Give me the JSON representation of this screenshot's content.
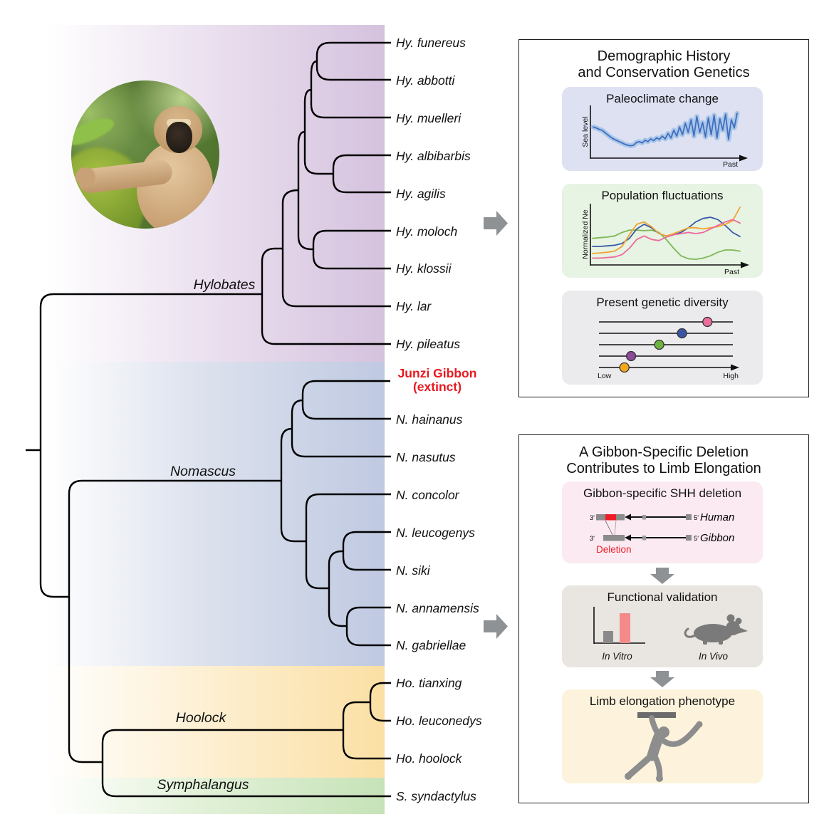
{
  "figure": {
    "description": "Gibbon phylogenomics summary figure"
  },
  "tree": {
    "genus_labels": [
      {
        "name": "Hylobates"
      },
      {
        "name": "Nomascus"
      },
      {
        "name": "Hoolock"
      },
      {
        "name": "Symphalangus"
      }
    ],
    "tips": [
      {
        "label": "Hy. funereus"
      },
      {
        "label": "Hy. abbotti"
      },
      {
        "label": "Hy. muelleri"
      },
      {
        "label": "Hy. albibarbis"
      },
      {
        "label": "Hy. agilis"
      },
      {
        "label": "Hy. moloch"
      },
      {
        "label": "Hy. klossii"
      },
      {
        "label": "Hy. lar"
      },
      {
        "label": "Hy. pileatus"
      },
      {
        "label": "Junzi Gibbon",
        "sublabel": "(extinct)",
        "highlight": true
      },
      {
        "label": "N. hainanus"
      },
      {
        "label": "N. nasutus"
      },
      {
        "label": "N. concolor"
      },
      {
        "label": "N. leucogenys"
      },
      {
        "label": "N. siki"
      },
      {
        "label": "N. annamensis"
      },
      {
        "label": "N. gabriellae"
      },
      {
        "label": "Ho. tianxing"
      },
      {
        "label": "Ho. leuconedys"
      },
      {
        "label": "Ho. hoolock"
      },
      {
        "label": "S. syndactylus"
      }
    ]
  },
  "panels": {
    "demographic": {
      "title_line1": "Demographic History",
      "title_line2": "and Conservation Genetics"
    },
    "deletion": {
      "title_line1": "A Gibbon-Specific Deletion",
      "title_line2": "Contributes to Limb Elongation",
      "shh": {
        "title": "Gibbon-specific SHH deletion",
        "rows": [
          {
            "left": "3'",
            "right": "5'",
            "species": "Human"
          },
          {
            "left": "3'",
            "right": "5'",
            "species": "Gibbon"
          }
        ],
        "deletion_label": "Deletion"
      },
      "functional": {
        "title": "Functional validation",
        "invitro": "In Vitro",
        "invivo": "In Vivo"
      },
      "limb": {
        "title": "Limb elongation phenotype"
      }
    }
  },
  "colors": {
    "band_hylobates": "#d5c2de",
    "band_nomascus": "#bfc9e1",
    "band_hoolock": "#fbdfa4",
    "band_symphalangus": "#c6e3b8",
    "junzi_red": "#e8191f",
    "arrow_gray": "#8e9295",
    "deletion_red": "#ee1c24",
    "invitro_bar_pink": "#f58a8a",
    "silhouette_gray": "#8d8d8d"
  },
  "chart_data": [
    {
      "id": "paleoclimate",
      "type": "line",
      "title": "Paleoclimate change",
      "xlabel": "Past",
      "ylabel": "Sea level",
      "grid": false,
      "line_color": "#3f6fbe",
      "band_color": "#aac6e9",
      "series": [
        {
          "name": "sea_level_relative",
          "values": [
            0.62,
            0.6,
            0.57,
            0.55,
            0.5,
            0.45,
            0.4,
            0.36,
            0.33,
            0.3,
            0.27,
            0.24,
            0.22,
            0.21,
            0.22,
            0.28,
            0.3,
            0.27,
            0.33,
            0.3,
            0.36,
            0.32,
            0.38,
            0.35,
            0.42,
            0.36,
            0.48,
            0.38,
            0.55,
            0.42,
            0.62,
            0.45,
            0.7,
            0.5,
            0.78,
            0.42,
            0.85,
            0.5,
            0.72,
            0.4,
            0.82,
            0.45,
            0.88,
            0.38,
            0.8,
            0.55,
            0.9,
            0.35,
            0.78,
            0.6,
            0.92
          ]
        }
      ]
    },
    {
      "id": "population",
      "type": "line",
      "title": "Population fluctuations",
      "xlabel": "Past",
      "ylabel": "Normalized Ne",
      "grid": false,
      "series": [
        {
          "name": "green",
          "color": "#7cb854",
          "values": [
            0.42,
            0.43,
            0.44,
            0.46,
            0.52,
            0.56,
            0.56,
            0.55,
            0.56,
            0.52,
            0.4,
            0.25,
            0.12,
            0.07,
            0.06,
            0.08,
            0.12,
            0.18,
            0.22,
            0.22,
            0.2
          ]
        },
        {
          "name": "blue",
          "color": "#3958a7",
          "values": [
            0.28,
            0.28,
            0.29,
            0.3,
            0.33,
            0.42,
            0.58,
            0.66,
            0.6,
            0.5,
            0.46,
            0.48,
            0.52,
            0.6,
            0.7,
            0.76,
            0.78,
            0.74,
            0.64,
            0.52,
            0.45
          ]
        },
        {
          "name": "orange",
          "color": "#f0a432",
          "values": [
            0.16,
            0.17,
            0.18,
            0.2,
            0.28,
            0.48,
            0.66,
            0.7,
            0.62,
            0.5,
            0.46,
            0.5,
            0.55,
            0.6,
            0.6,
            0.58,
            0.6,
            0.62,
            0.66,
            0.72,
            0.95
          ]
        },
        {
          "name": "pink",
          "color": "#ec6a9c",
          "values": [
            0.08,
            0.08,
            0.09,
            0.1,
            0.14,
            0.25,
            0.4,
            0.46,
            0.4,
            0.38,
            0.44,
            0.48,
            0.5,
            0.52,
            0.5,
            0.52,
            0.58,
            0.64,
            0.7,
            0.74,
            0.68
          ]
        }
      ]
    },
    {
      "id": "diversity",
      "type": "scatter",
      "title": "Present genetic diversity",
      "xlabel_low": "Low",
      "xlabel_high": "High",
      "rows": 5,
      "points": [
        {
          "row": 1,
          "value": 0.81,
          "color": "#ea6d9e"
        },
        {
          "row": 2,
          "value": 0.62,
          "color": "#3b55a4"
        },
        {
          "row": 3,
          "value": 0.45,
          "color": "#6cb33f"
        },
        {
          "row": 4,
          "value": 0.24,
          "color": "#8c4a97"
        },
        {
          "row": 5,
          "value": 0.19,
          "color": "#f5a81c"
        }
      ]
    }
  ]
}
